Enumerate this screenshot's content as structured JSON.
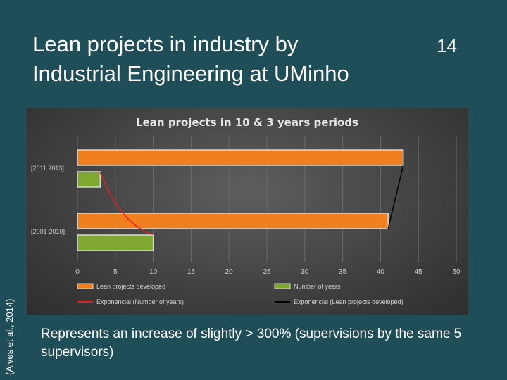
{
  "slide": {
    "title_line1": "Lean projects in industry by",
    "title_line2": "Industrial Engineering at UMinho",
    "slide_number": "14",
    "citation": "(Alves et al., 2014)",
    "caption": "Represents an increase of slightly > 300% (supervisions by the same 5 supervisors)"
  },
  "chart_data": {
    "type": "bar",
    "orientation": "horizontal",
    "title": "Lean projects in 10 & 3 years periods",
    "categories": [
      "[2011 2013]",
      "[2001-2010]"
    ],
    "series": [
      {
        "name": "Lean projects developed",
        "values": [
          43,
          41
        ],
        "color": "#f07f1e"
      },
      {
        "name": "Number of years",
        "values": [
          3,
          10
        ],
        "color": "#7fa832"
      }
    ],
    "trendlines": [
      {
        "name": "Exponencial (Number of years)",
        "color": "#e02020"
      },
      {
        "name": "Exponencial (Lean projects developed)",
        "color": "#000000"
      }
    ],
    "xlim": [
      0,
      50
    ],
    "xticks": [
      0,
      5,
      10,
      15,
      20,
      25,
      30,
      35,
      40,
      45,
      50
    ],
    "legend_position": "bottom",
    "grid": true
  }
}
